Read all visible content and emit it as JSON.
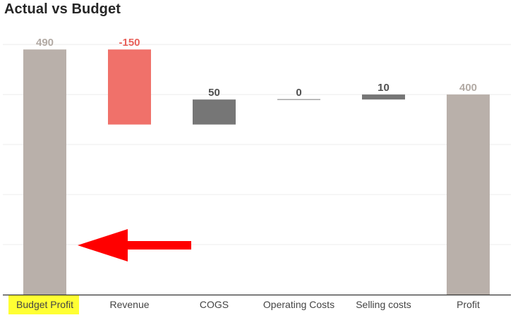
{
  "chart_data": {
    "type": "bar",
    "subtype": "waterfall",
    "title": "Actual vs Budget",
    "categories": [
      "Budget Profit",
      "Revenue",
      "COGS",
      "Operating Costs",
      "Selling costs",
      "Profit"
    ],
    "values": [
      490,
      -150,
      50,
      0,
      10,
      400
    ],
    "value_labels": [
      "490",
      "-150",
      "50",
      "0",
      "10",
      "400"
    ],
    "kinds": [
      "total",
      "decrease",
      "increase",
      "change",
      "increase",
      "total"
    ],
    "xlabel": "",
    "ylabel": "",
    "ylim": [
      0,
      500
    ],
    "grid": true,
    "legend": "none",
    "highlighted_category": "Budget Profit",
    "annotation": {
      "type": "arrow",
      "direction": "left",
      "target": "Budget Profit",
      "color": "#ff0000"
    },
    "colors": {
      "total": "#b9b0aa",
      "decrease": "#f0716a",
      "increase": "#767676",
      "total_label": "#b2aaa4",
      "decrease_label": "#e8605a",
      "increase_label": "#505050",
      "highlight": "#ffff33",
      "gridline": "#ececec",
      "axis": "#333333",
      "tick_label": "#444444"
    }
  }
}
